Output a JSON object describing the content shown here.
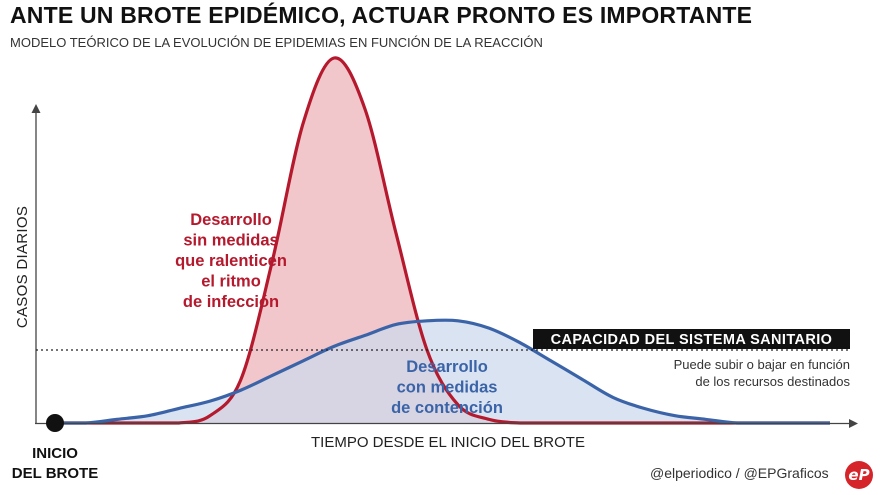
{
  "header": {
    "title": "ANTE UN BROTE EPIDÉMICO, ACTUAR PRONTO ES IMPORTANTE",
    "subtitle": "MODELO TEÓRICO DE LA EVOLUCIÓN DE EPIDEMIAS EN FUNCIÓN DE LA REACCIÓN"
  },
  "footer": {
    "credit": "@elperiodico / @EPGraficos",
    "logo_text": "eP"
  },
  "chart_data": {
    "type": "area",
    "title": "ANTE UN BROTE EPIDÉMICO, ACTUAR PRONTO ES IMPORTANTE",
    "subtitle": "MODELO TEÓRICO DE LA EVOLUCIÓN DE EPIDEMIAS EN FUNCIÓN DE LA REACCIÓN",
    "xlabel": "TIEMPO DESDE EL INICIO DEL BROTE",
    "ylabel": "CASOS DIARIOS",
    "xlim": [
      0,
      100
    ],
    "ylim": [
      0,
      100
    ],
    "origin_label": [
      "INICIO",
      "DEL BROTE"
    ],
    "series": [
      {
        "name": "Desarrollo sin medidas que ralenticen el ritmo de infección",
        "label_lines": [
          "Desarrollo",
          "sin medidas",
          "que ralenticen",
          "el ritmo",
          "de infección"
        ],
        "color": "#b5192d",
        "fill": "#f2c7cb",
        "x": [
          0,
          4,
          8,
          12,
          16,
          20,
          24,
          28,
          32,
          36,
          40,
          44,
          48,
          52,
          56,
          60,
          64,
          68,
          72,
          76,
          80,
          84,
          88,
          92,
          96,
          100
        ],
        "y": [
          0,
          0,
          0,
          0,
          0,
          2,
          12,
          44,
          82,
          100,
          86,
          52,
          20,
          5,
          1,
          0,
          0,
          0,
          0,
          0,
          0,
          0,
          0,
          0,
          0,
          0
        ]
      },
      {
        "name": "Desarrollo con medidas de contención",
        "label_lines": [
          "Desarrollo",
          "con medidas",
          "de contención"
        ],
        "color": "#3b64a8",
        "fill": "#cdd9ec",
        "x": [
          0,
          4,
          8,
          12,
          16,
          20,
          24,
          28,
          32,
          36,
          40,
          44,
          48,
          52,
          56,
          60,
          64,
          68,
          72,
          76,
          80,
          84,
          88,
          92,
          96,
          100
        ],
        "y": [
          0,
          0,
          1,
          2,
          4,
          6,
          9,
          13,
          17,
          21,
          24,
          27,
          28,
          28,
          26,
          22,
          17,
          12,
          7,
          4,
          2,
          1,
          0,
          0,
          0,
          0
        ]
      }
    ],
    "threshold": {
      "value": 20,
      "label": "CAPACIDAD DEL SISTEMA SANITARIO",
      "note_lines": [
        "Puede subir o bajar en función",
        "de los recursos destinados"
      ]
    }
  }
}
